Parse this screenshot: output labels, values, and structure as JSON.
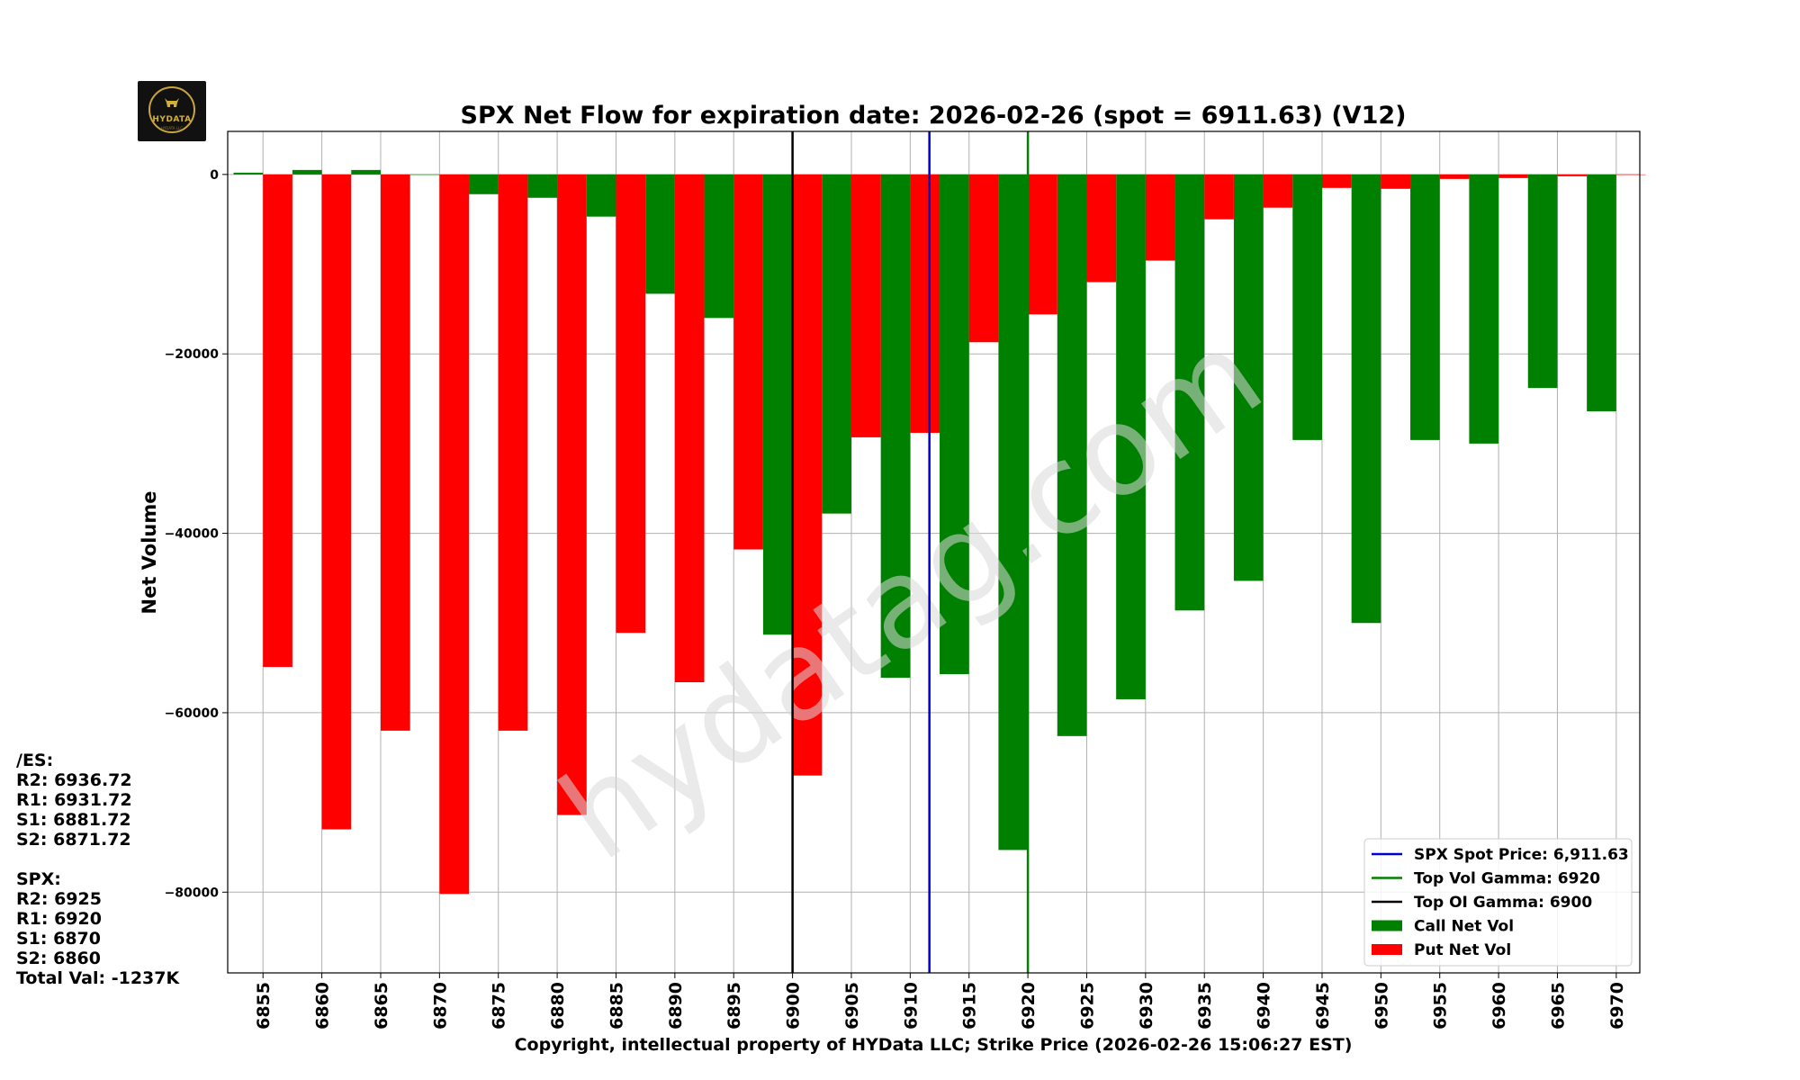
{
  "logo": {
    "text": "HYDATA",
    "subtext": "HYDATA LLC"
  },
  "watermark": "hydatag.com",
  "es_levels": {
    "heading": "/ES:",
    "lines": [
      "R2: 6936.72",
      "R1: 6931.72",
      "S1: 6881.72",
      "S2: 6871.72"
    ]
  },
  "spx_levels": {
    "heading": "SPX:",
    "lines": [
      "R2: 6925",
      "R1: 6920",
      "S1: 6870",
      "S2: 6860"
    ]
  },
  "total_val": "Total Val: -1237K",
  "colors": {
    "call": "#008000",
    "put": "#ff0000",
    "spot": "#0000cc",
    "vol_gamma": "#008000",
    "oi_gamma": "#000000"
  },
  "chart_data": {
    "type": "bar",
    "title": "SPX Net Flow for expiration date: 2026-02-26 (spot = 6911.63) (V12)",
    "xlabel": "Copyright, intellectual property of HYData LLC; Strike Price (2026-02-26 15:06:27 EST)",
    "ylabel": "Net Volume",
    "ylim": [
      -89000,
      4800
    ],
    "xlim": [
      6852,
      6972
    ],
    "yticks": [
      0,
      -20000,
      -40000,
      -60000,
      -80000
    ],
    "ytick_labels": [
      "0",
      "−20000",
      "−40000",
      "−60000",
      "−80000"
    ],
    "strikes": [
      6855,
      6860,
      6865,
      6870,
      6875,
      6880,
      6885,
      6890,
      6895,
      6900,
      6905,
      6910,
      6915,
      6920,
      6925,
      6930,
      6935,
      6940,
      6945,
      6950,
      6955,
      6960,
      6965,
      6970
    ],
    "series": [
      {
        "name": "Call Net Vol",
        "key": "call",
        "values": [
          200,
          500,
          500,
          0,
          -2200,
          -2600,
          -4700,
          -13300,
          -16000,
          -51300,
          -37800,
          -56100,
          -55700,
          -75300,
          -62600,
          -58500,
          -48600,
          -45300,
          -29600,
          -50000,
          -29600,
          -30000,
          -23800,
          -26400
        ]
      },
      {
        "name": "Put Net Vol",
        "key": "put",
        "values": [
          -54900,
          -73000,
          -62000,
          -80200,
          -62000,
          -71400,
          -51100,
          -56600,
          -41800,
          -67000,
          -29300,
          -28800,
          -18700,
          -15600,
          -12000,
          -9600,
          -5000,
          -3700,
          -1500,
          -1600,
          -500,
          -400,
          -200,
          0
        ]
      }
    ],
    "vlines": [
      {
        "name": "SPX Spot Price: 6,911.63",
        "x": 6911.63,
        "key": "spot"
      },
      {
        "name": "Top Vol Gamma: 6920",
        "x": 6920,
        "key": "vol_gamma"
      },
      {
        "name": "Top OI Gamma: 6900",
        "x": 6900,
        "key": "oi_gamma"
      }
    ],
    "grid": true,
    "legend_position": "bottom-right"
  }
}
